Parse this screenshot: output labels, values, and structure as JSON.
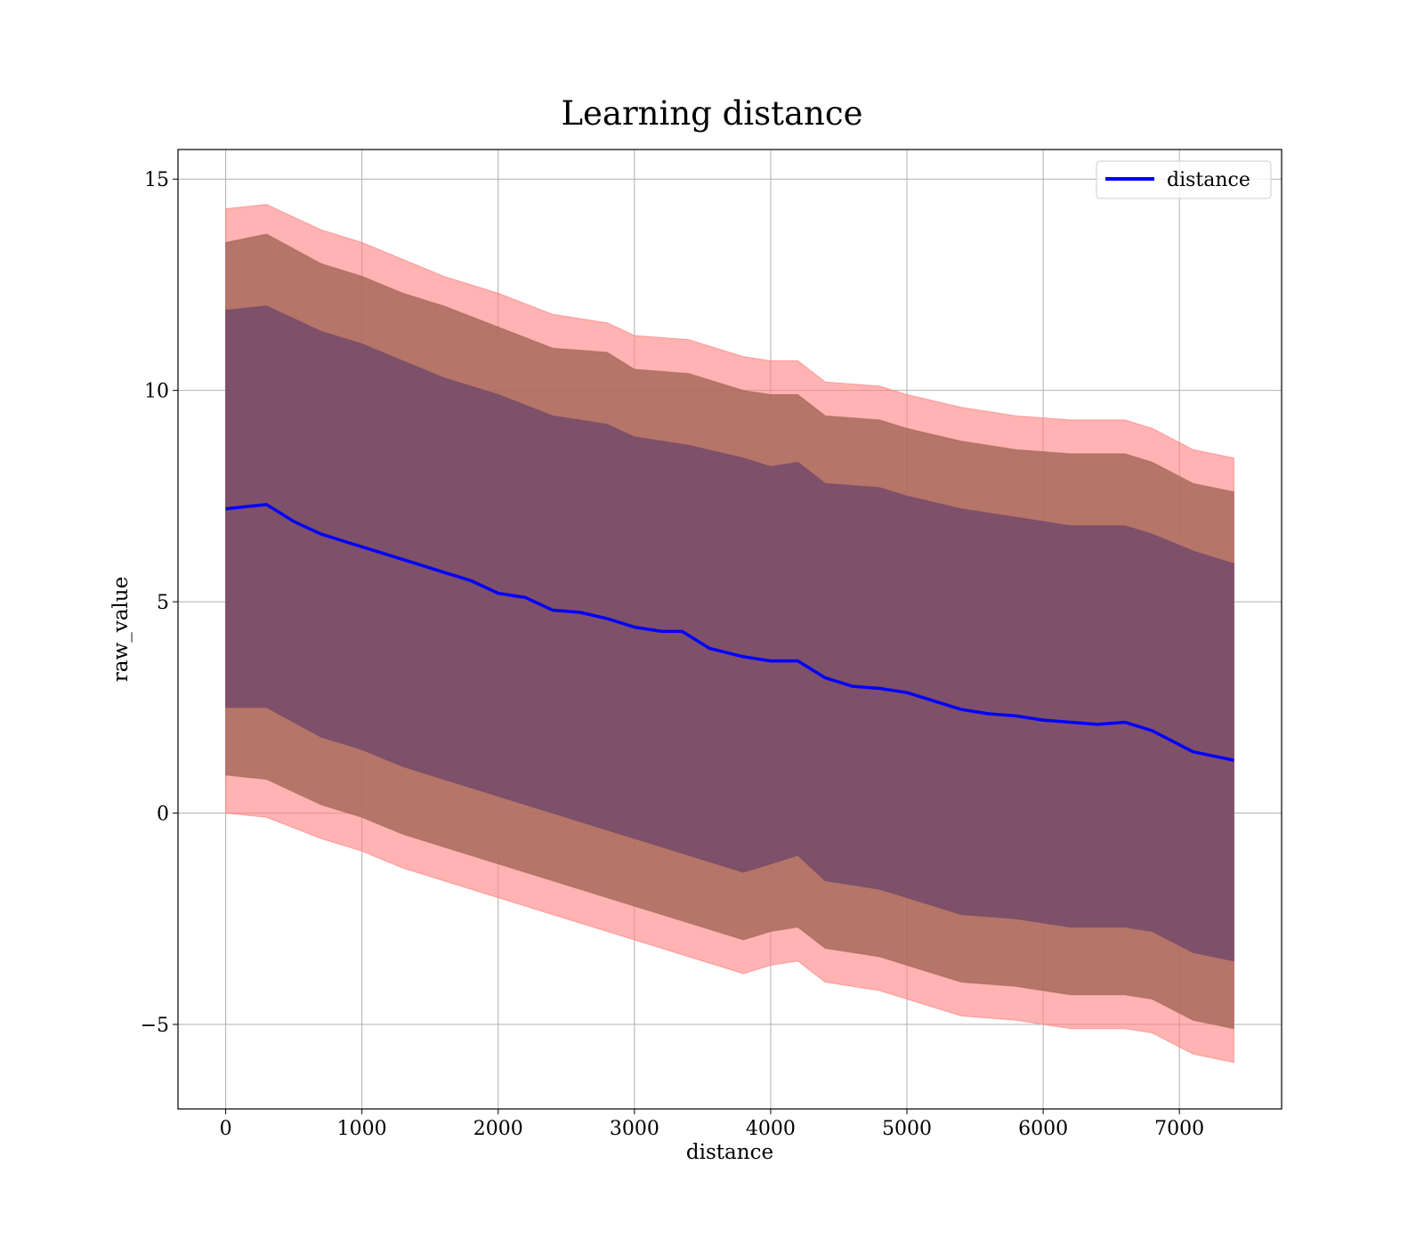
{
  "chart_data": {
    "type": "line",
    "title": "Learning distance",
    "xlabel": "distance",
    "ylabel": "raw_value",
    "xlim": [
      -350,
      7750
    ],
    "ylim": [
      -7,
      15.7
    ],
    "xticks": [
      0,
      1000,
      2000,
      3000,
      4000,
      5000,
      6000,
      7000
    ],
    "yticks": [
      -5,
      0,
      5,
      10,
      15
    ],
    "ytick_labels": [
      "−5",
      "0",
      "5",
      "10",
      "15"
    ],
    "grid": true,
    "legend": {
      "placement": "top-right",
      "entries": [
        "distance"
      ]
    },
    "colors": {
      "line": "#0000ff",
      "band_outer": "#ff8080",
      "band_middle": "#a86a5a",
      "band_inner": "#754a6a",
      "grid": "#b0b0b0"
    },
    "series": [
      {
        "name": "distance",
        "x": [
          0,
          300,
          500,
          700,
          1000,
          1300,
          1600,
          1800,
          2000,
          2200,
          2400,
          2600,
          2800,
          3000,
          3200,
          3350,
          3550,
          3800,
          4000,
          4200,
          4400,
          4600,
          4800,
          5000,
          5200,
          5400,
          5600,
          5800,
          6000,
          6200,
          6400,
          6600,
          6800,
          7100,
          7400
        ],
        "y": [
          7.2,
          7.3,
          6.9,
          6.6,
          6.3,
          6.0,
          5.7,
          5.5,
          5.2,
          5.1,
          4.8,
          4.75,
          4.6,
          4.4,
          4.3,
          4.3,
          3.9,
          3.7,
          3.6,
          3.6,
          3.2,
          3.0,
          2.95,
          2.85,
          2.65,
          2.45,
          2.35,
          2.3,
          2.2,
          2.15,
          2.1,
          2.15,
          1.95,
          1.45,
          1.25
        ]
      }
    ],
    "bands": [
      {
        "level": "outer",
        "x": [
          0,
          300,
          700,
          1000,
          1300,
          1600,
          2000,
          2400,
          2800,
          3000,
          3400,
          3800,
          4000,
          4200,
          4400,
          4800,
          5000,
          5400,
          5800,
          6200,
          6600,
          6800,
          7100,
          7400
        ],
        "upper": [
          14.3,
          14.4,
          13.8,
          13.5,
          13.1,
          12.7,
          12.3,
          11.8,
          11.6,
          11.3,
          11.2,
          10.8,
          10.7,
          10.7,
          10.2,
          10.1,
          9.9,
          9.6,
          9.4,
          9.3,
          9.3,
          9.1,
          8.6,
          8.4
        ],
        "lower": [
          0.0,
          -0.1,
          -0.6,
          -0.9,
          -1.3,
          -1.6,
          -2.0,
          -2.4,
          -2.8,
          -3.0,
          -3.4,
          -3.8,
          -3.6,
          -3.5,
          -4.0,
          -4.2,
          -4.4,
          -4.8,
          -4.9,
          -5.1,
          -5.1,
          -5.2,
          -5.7,
          -5.9
        ]
      },
      {
        "level": "middle",
        "x": [
          0,
          300,
          700,
          1000,
          1300,
          1600,
          2000,
          2400,
          2800,
          3000,
          3400,
          3800,
          4000,
          4200,
          4400,
          4800,
          5000,
          5400,
          5800,
          6200,
          6600,
          6800,
          7100,
          7400
        ],
        "upper": [
          13.5,
          13.7,
          13.0,
          12.7,
          12.3,
          12.0,
          11.5,
          11.0,
          10.9,
          10.5,
          10.4,
          10.0,
          9.9,
          9.9,
          9.4,
          9.3,
          9.1,
          8.8,
          8.6,
          8.5,
          8.5,
          8.3,
          7.8,
          7.6
        ],
        "lower": [
          0.9,
          0.8,
          0.2,
          -0.1,
          -0.5,
          -0.8,
          -1.2,
          -1.6,
          -2.0,
          -2.2,
          -2.6,
          -3.0,
          -2.8,
          -2.7,
          -3.2,
          -3.4,
          -3.6,
          -4.0,
          -4.1,
          -4.3,
          -4.3,
          -4.4,
          -4.9,
          -5.1
        ]
      },
      {
        "level": "inner",
        "x": [
          0,
          300,
          700,
          1000,
          1300,
          1600,
          2000,
          2400,
          2800,
          3000,
          3400,
          3800,
          4000,
          4200,
          4400,
          4800,
          5000,
          5400,
          5800,
          6200,
          6600,
          6800,
          7100,
          7400
        ],
        "upper": [
          11.9,
          12.0,
          11.4,
          11.1,
          10.7,
          10.3,
          9.9,
          9.4,
          9.2,
          8.9,
          8.7,
          8.4,
          8.2,
          8.3,
          7.8,
          7.7,
          7.5,
          7.2,
          7.0,
          6.8,
          6.8,
          6.6,
          6.2,
          5.9
        ],
        "lower": [
          2.5,
          2.5,
          1.8,
          1.5,
          1.1,
          0.8,
          0.4,
          0.0,
          -0.4,
          -0.6,
          -1.0,
          -1.4,
          -1.2,
          -1.0,
          -1.6,
          -1.8,
          -2.0,
          -2.4,
          -2.5,
          -2.7,
          -2.7,
          -2.8,
          -3.3,
          -3.5
        ]
      }
    ]
  }
}
